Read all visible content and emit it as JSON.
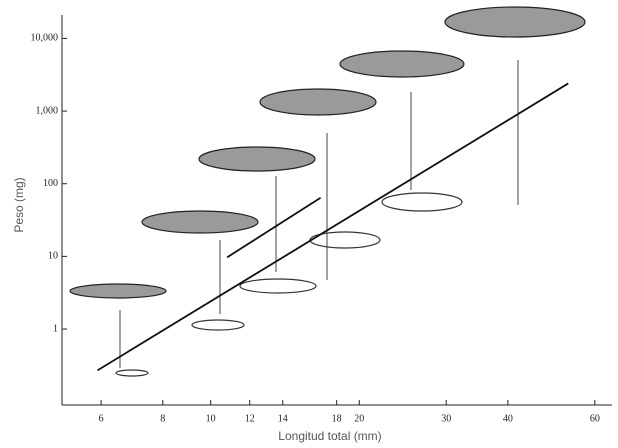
{
  "chart_data": {
    "type": "line",
    "x_label": "Longitud total (mm)",
    "y_label": "Peso (mg)",
    "xlog": true,
    "ylog": true,
    "xlim": [
      5,
      65
    ],
    "ylim": [
      0.09,
      21000
    ],
    "xticks": [
      6,
      8,
      10,
      12,
      14,
      18,
      20,
      30,
      40,
      60
    ],
    "yticks": [
      1,
      10,
      100,
      {
        "value": 1000,
        "label": "1,000"
      },
      {
        "value": 10000,
        "label": "10,000"
      }
    ],
    "series": [
      {
        "color": "#111111",
        "x": [
          5.9,
          53
        ],
        "values": [
          0.27,
          2400
        ]
      },
      {
        "color": "#111111",
        "x": [
          10.8,
          16.7
        ],
        "values": [
          9.7,
          64
        ]
      }
    ]
  }
}
